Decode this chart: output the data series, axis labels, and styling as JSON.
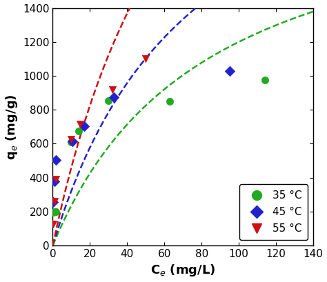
{
  "title": "",
  "xlabel": "C$_e$ (mg/L)",
  "ylabel": "q$_e$ (mg/g)",
  "xlim": [
    0,
    140
  ],
  "ylim": [
    0,
    1400
  ],
  "xticks": [
    0,
    20,
    40,
    60,
    80,
    100,
    120,
    140
  ],
  "yticks": [
    0,
    200,
    400,
    600,
    800,
    1000,
    1200,
    1400
  ],
  "series": [
    {
      "label": "35 °C",
      "color": "#22aa22",
      "marker": "o",
      "x": [
        0.3,
        0.8,
        1.5,
        10.0,
        14.0,
        30.0,
        63.0,
        114.0
      ],
      "y": [
        195,
        200,
        200,
        610,
        675,
        855,
        850,
        975
      ]
    },
    {
      "label": "45 °C",
      "color": "#2222cc",
      "marker": "D",
      "x": [
        0.3,
        0.8,
        1.5,
        10.5,
        17.0,
        33.0,
        95.0
      ],
      "y": [
        255,
        380,
        505,
        615,
        705,
        875,
        1030
      ]
    },
    {
      "label": "55 °C",
      "color": "#cc1111",
      "marker": "v",
      "x": [
        0.3,
        0.8,
        1.5,
        10.0,
        14.5,
        32.0,
        50.0
      ],
      "y": [
        125,
        260,
        390,
        625,
        715,
        920,
        1100
      ]
    }
  ],
  "langmuir_params": [
    {
      "qm": 2200,
      "KL": 0.012
    },
    {
      "qm": 2800,
      "KL": 0.013
    },
    {
      "qm": 4000,
      "KL": 0.013
    }
  ],
  "background_color": "#ffffff",
  "legend_loc": "lower right",
  "figsize": [
    4.74,
    4.09
  ],
  "dpi": 100
}
